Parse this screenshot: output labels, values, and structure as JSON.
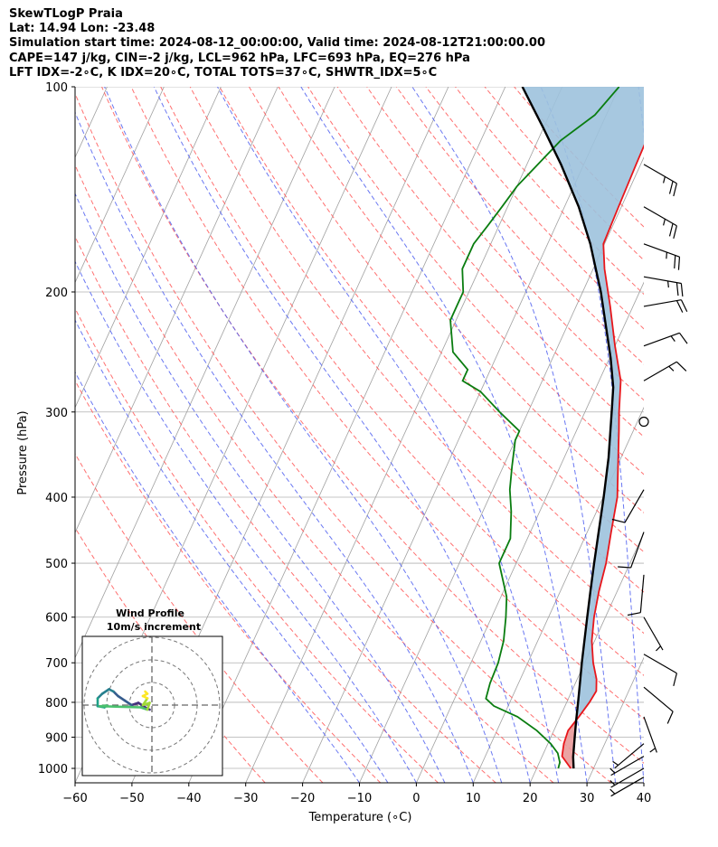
{
  "header": {
    "line1": "SkewTLogP Praia",
    "line2": "Lat: 14.94   Lon: -23.48",
    "line3": "Simulation start time: 2024-08-12_00:00:00, Valid time: 2024-08-12T21:00:00.00",
    "line4": "CAPE=147 j/kg, CIN=-2 j/kg, LCL=962 hPa, LFC=693 hPa, EQ=276 hPa",
    "line5": "LFT IDX=-2∘C, K IDX=20∘C, TOTAL TOTS=37∘C, SHWTR_IDX=5∘C"
  },
  "chart_data": {
    "type": "line",
    "subtype": "skew-t log-p",
    "xlabel": "Temperature (∘C)",
    "ylabel": "Pressure (hPa)",
    "xlim": [
      -60,
      40
    ],
    "ylim": [
      1050,
      100
    ],
    "x_ticks": [
      -60,
      -50,
      -40,
      -30,
      -20,
      -10,
      0,
      10,
      20,
      30,
      40
    ],
    "x_tick_labels": [
      "−60",
      "−50",
      "−40",
      "−30",
      "−20",
      "−10",
      "0",
      "10",
      "20",
      "30",
      "40"
    ],
    "y_ticks": [
      1000,
      900,
      800,
      700,
      600,
      500,
      400,
      300,
      200,
      100
    ],
    "y_tick_labels": [
      "1000",
      "900",
      "800",
      "700",
      "600",
      "500",
      "400",
      "300",
      "200",
      "100"
    ],
    "grid": true,
    "series": [
      {
        "name": "Temperature",
        "color": "#e8161b",
        "points": [
          [
            1000,
            26
          ],
          [
            960,
            23.5
          ],
          [
            920,
            22.8
          ],
          [
            880,
            22.5
          ],
          [
            840,
            23.3
          ],
          [
            800,
            24
          ],
          [
            770,
            24.3
          ],
          [
            740,
            23.4
          ],
          [
            700,
            21.5
          ],
          [
            650,
            19.5
          ],
          [
            600,
            18
          ],
          [
            550,
            16.8
          ],
          [
            500,
            15.8
          ],
          [
            450,
            14.2
          ],
          [
            400,
            12.5
          ],
          [
            350,
            9.5
          ],
          [
            320,
            7.5
          ],
          [
            300,
            6
          ],
          [
            270,
            3.8
          ],
          [
            240,
            0
          ],
          [
            210,
            -4
          ],
          [
            185,
            -8
          ],
          [
            170,
            -10.2
          ],
          [
            150,
            -10.5
          ],
          [
            130,
            -10.8
          ],
          [
            115,
            -11
          ],
          [
            100,
            -11.5
          ]
        ]
      },
      {
        "name": "Dewpoint",
        "color": "#0a7d10",
        "points": [
          [
            1000,
            23.8
          ],
          [
            980,
            23.6
          ],
          [
            950,
            22.5
          ],
          [
            920,
            20.5
          ],
          [
            880,
            17
          ],
          [
            840,
            12.5
          ],
          [
            810,
            7.5
          ],
          [
            790,
            5.5
          ],
          [
            750,
            5
          ],
          [
            700,
            4.8
          ],
          [
            650,
            4
          ],
          [
            600,
            2.5
          ],
          [
            560,
            1
          ],
          [
            500,
            -3
          ],
          [
            460,
            -3
          ],
          [
            420,
            -5
          ],
          [
            390,
            -7
          ],
          [
            360,
            -8.5
          ],
          [
            330,
            -10
          ],
          [
            320,
            -10
          ],
          [
            300,
            -15
          ],
          [
            280,
            -20
          ],
          [
            270,
            -24
          ],
          [
            260,
            -24
          ],
          [
            245,
            -28
          ],
          [
            220,
            -31
          ],
          [
            200,
            -31
          ],
          [
            185,
            -33
          ],
          [
            170,
            -33
          ],
          [
            160,
            -32
          ],
          [
            150,
            -31
          ],
          [
            140,
            -30
          ],
          [
            120,
            -26
          ],
          [
            110,
            -22
          ],
          [
            100,
            -20
          ]
        ]
      },
      {
        "name": "Parcel profile",
        "color": "#000000",
        "points": [
          [
            1000,
            26.5
          ],
          [
            962,
            25.5
          ],
          [
            900,
            24.2
          ],
          [
            850,
            23.1
          ],
          [
            800,
            22
          ],
          [
            750,
            20.8
          ],
          [
            700,
            19.5
          ],
          [
            650,
            18.2
          ],
          [
            600,
            16.8
          ],
          [
            550,
            15.3
          ],
          [
            500,
            13.7
          ],
          [
            450,
            12
          ],
          [
            400,
            10.1
          ],
          [
            350,
            7.8
          ],
          [
            300,
            4.7
          ],
          [
            276,
            3
          ],
          [
            250,
            0.2
          ],
          [
            200,
            -6.8
          ],
          [
            170,
            -12.5
          ],
          [
            150,
            -17.5
          ],
          [
            130,
            -24
          ],
          [
            115,
            -30
          ],
          [
            100,
            -37
          ]
        ]
      }
    ],
    "shading": [
      {
        "name": "CAPE",
        "color": "#e99999"
      },
      {
        "name": "CIN / upper",
        "color": "#9dc2dd"
      }
    ],
    "dry_adiabats_theta_C": [
      -30,
      -20,
      -10,
      0,
      10,
      20,
      30,
      40,
      50,
      60,
      70,
      80,
      90,
      100,
      110,
      120,
      130,
      140,
      150,
      160,
      170,
      180
    ],
    "moist_adiabats_T1000_C": [
      -10,
      -5,
      0,
      5,
      10,
      15,
      20,
      25,
      30,
      35,
      40,
      45
    ],
    "mixing_ratio_gkg": [
      0.5,
      1,
      2,
      4,
      8,
      16,
      24
    ],
    "isotherms_C": [
      -150,
      -140,
      -130,
      -120,
      -110,
      -100,
      -90,
      -80,
      -70,
      -60,
      -50,
      -40,
      -30,
      -20,
      -10,
      0,
      10,
      20,
      30,
      40
    ],
    "wind_barbs": [
      {
        "p": 130,
        "speed_kt": 25,
        "dir": 120
      },
      {
        "p": 150,
        "speed_kt": 25,
        "dir": 120
      },
      {
        "p": 170,
        "speed_kt": 25,
        "dir": 110
      },
      {
        "p": 190,
        "speed_kt": 25,
        "dir": 100
      },
      {
        "p": 210,
        "speed_kt": 20,
        "dir": 80
      },
      {
        "p": 240,
        "speed_kt": 15,
        "dir": 70
      },
      {
        "p": 270,
        "speed_kt": 15,
        "dir": 60
      },
      {
        "p": 310,
        "speed_kt": 0,
        "dir": 0
      },
      {
        "p": 390,
        "speed_kt": 10,
        "dir": 210
      },
      {
        "p": 450,
        "speed_kt": 10,
        "dir": 200
      },
      {
        "p": 520,
        "speed_kt": 10,
        "dir": 185
      },
      {
        "p": 600,
        "speed_kt": 5,
        "dir": 150
      },
      {
        "p": 680,
        "speed_kt": 10,
        "dir": 120
      },
      {
        "p": 760,
        "speed_kt": 10,
        "dir": 130
      },
      {
        "p": 840,
        "speed_kt": 5,
        "dir": 160
      },
      {
        "p": 920,
        "speed_kt": 5,
        "dir": 230
      },
      {
        "p": 960,
        "speed_kt": 5,
        "dir": 240
      },
      {
        "p": 1000,
        "speed_kt": 5,
        "dir": 240
      },
      {
        "p": 1030,
        "speed_kt": 5,
        "dir": 240
      }
    ],
    "inset": {
      "title": "Wind Profile",
      "subtitle": "10m/s increment",
      "rings": 3,
      "hodograph_uv": [
        [
          -1,
          -2
        ],
        [
          -3,
          -1
        ],
        [
          -6,
          1
        ],
        [
          -9,
          0
        ],
        [
          -12,
          2
        ],
        [
          -15,
          4
        ],
        [
          -17,
          6
        ],
        [
          -19,
          7
        ],
        [
          -22,
          5
        ],
        [
          -24,
          3
        ],
        [
          -24,
          -0.5
        ],
        [
          -21,
          -1
        ],
        [
          -20,
          -0.2
        ],
        [
          -23,
          -0.5
        ],
        [
          -5,
          -1
        ],
        [
          -2,
          -2
        ],
        [
          -1,
          1
        ],
        [
          -4,
          0
        ],
        [
          -2,
          3
        ],
        [
          -4,
          4
        ],
        [
          -2,
          5
        ],
        [
          -3,
          6
        ]
      ],
      "hodograph_colors": [
        "#46327e",
        "#365c8d",
        "#277f8e",
        "#1fa187",
        "#4ac16d",
        "#a0da39",
        "#fde725"
      ]
    }
  }
}
